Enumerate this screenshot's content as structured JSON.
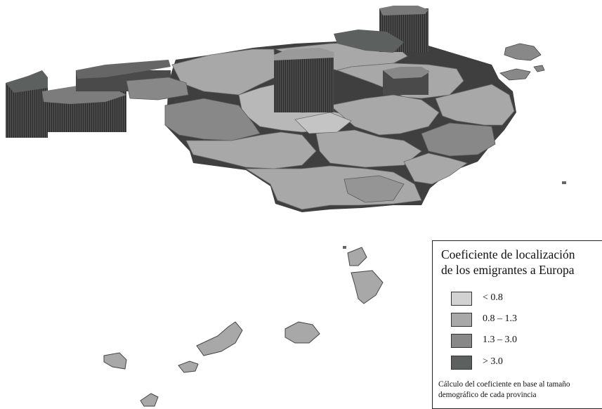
{
  "legend": {
    "title_line1": "Coeficiente de localización",
    "title_line2": "de los emigrantes a Europa",
    "classes": [
      {
        "label": "< 0.8",
        "color": "#d2d2d2"
      },
      {
        "label": "0.8 – 1.3",
        "color": "#a8a8a8"
      },
      {
        "label": "1.3 – 3.0",
        "color": "#888888"
      },
      {
        "label": "> 3.0",
        "color": "#5c605e"
      }
    ],
    "note_line1": "Cálculo del coeficiente en base al  tamaño",
    "note_line2": "demográfico de cada provincia"
  }
}
